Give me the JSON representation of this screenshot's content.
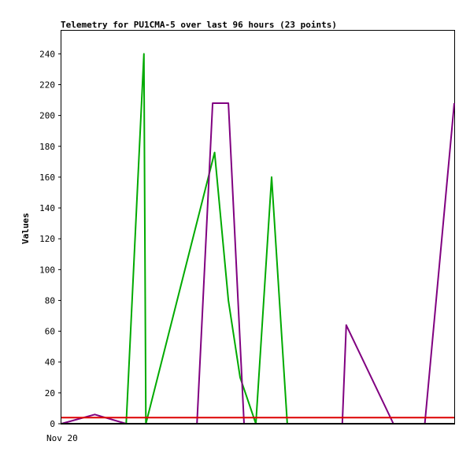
{
  "chart_data": {
    "type": "line",
    "title": "Telemetry for PU1CMA-5 over last 96 hours (23 points)",
    "ylabel": "Values",
    "xlabel": "",
    "x_tick_labels": [
      "Nov 20"
    ],
    "ylim": [
      0,
      255
    ],
    "y_ticks": [
      0,
      20,
      40,
      60,
      80,
      100,
      120,
      140,
      160,
      180,
      200,
      220,
      240
    ],
    "grid": false,
    "legend": "none",
    "colors": {
      "background": "#ffffff",
      "axis": "#000000"
    },
    "series": [
      {
        "color": "#00aa00",
        "points": [
          [
            0.165,
            0
          ],
          [
            0.21,
            240
          ],
          [
            0.215,
            0
          ],
          [
            0.39,
            176
          ],
          [
            0.425,
            80
          ],
          [
            0.455,
            30
          ],
          [
            0.495,
            0
          ],
          [
            0.535,
            160
          ],
          [
            0.575,
            0
          ],
          [
            1.0,
            0
          ]
        ]
      },
      {
        "color": "#800080",
        "points": [
          [
            0,
            0
          ],
          [
            0.085,
            6
          ],
          [
            0.165,
            0
          ],
          [
            0.345,
            0
          ],
          [
            0.385,
            208
          ],
          [
            0.425,
            208
          ],
          [
            0.465,
            0
          ],
          [
            0.715,
            0
          ],
          [
            0.725,
            64
          ],
          [
            0.845,
            0
          ],
          [
            0.925,
            0
          ],
          [
            1.0,
            208
          ]
        ]
      },
      {
        "color": "#dd0000",
        "points": [
          [
            0,
            4
          ],
          [
            1.0,
            4
          ]
        ]
      },
      {
        "color": "#000000",
        "points": [
          [
            0,
            0
          ],
          [
            1.0,
            0
          ]
        ]
      }
    ]
  }
}
